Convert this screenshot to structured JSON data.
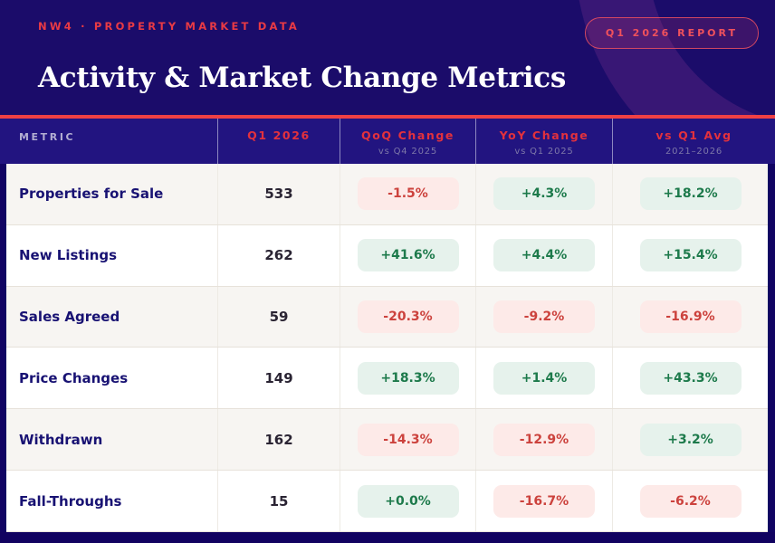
{
  "header": {
    "eyebrow": "NW4 · PROPERTY MARKET DATA",
    "badge": "Q1 2026 REPORT",
    "title": "Activity & Market Change Metrics"
  },
  "colors": {
    "accent_red": "#ef4044",
    "header_band": "#221480",
    "hero_navy": "#1b0c6a",
    "positive_text": "#1d7a4b",
    "positive_bg": "#e6f2ec",
    "negative_text": "#cc423d",
    "negative_bg": "#fdeae8",
    "metric_navy": "#181273"
  },
  "table": {
    "columns": [
      {
        "label": "METRIC",
        "sub": ""
      },
      {
        "label": "Q1 2026",
        "sub": ""
      },
      {
        "label": "QoQ Change",
        "sub": "vs Q4 2025"
      },
      {
        "label": "YoY Change",
        "sub": "vs Q1 2025"
      },
      {
        "label": "vs Q1 Avg",
        "sub": "2021–2026"
      }
    ],
    "rows": [
      {
        "metric": "Properties for Sale",
        "value": "533",
        "qoq": {
          "text": "-1.5%",
          "dir": "neg"
        },
        "yoy": {
          "text": "+4.3%",
          "dir": "pos"
        },
        "avg": {
          "text": "+18.2%",
          "dir": "pos"
        }
      },
      {
        "metric": "New Listings",
        "value": "262",
        "qoq": {
          "text": "+41.6%",
          "dir": "pos"
        },
        "yoy": {
          "text": "+4.4%",
          "dir": "pos"
        },
        "avg": {
          "text": "+15.4%",
          "dir": "pos"
        }
      },
      {
        "metric": "Sales Agreed",
        "value": "59",
        "qoq": {
          "text": "-20.3%",
          "dir": "neg"
        },
        "yoy": {
          "text": "-9.2%",
          "dir": "neg"
        },
        "avg": {
          "text": "-16.9%",
          "dir": "neg"
        }
      },
      {
        "metric": "Price Changes",
        "value": "149",
        "qoq": {
          "text": "+18.3%",
          "dir": "pos"
        },
        "yoy": {
          "text": "+1.4%",
          "dir": "pos"
        },
        "avg": {
          "text": "+43.3%",
          "dir": "pos"
        }
      },
      {
        "metric": "Withdrawn",
        "value": "162",
        "qoq": {
          "text": "-14.3%",
          "dir": "neg"
        },
        "yoy": {
          "text": "-12.9%",
          "dir": "neg"
        },
        "avg": {
          "text": "+3.2%",
          "dir": "pos"
        }
      },
      {
        "metric": "Fall-Throughs",
        "value": "15",
        "qoq": {
          "text": "+0.0%",
          "dir": "pos"
        },
        "yoy": {
          "text": "-16.7%",
          "dir": "neg"
        },
        "avg": {
          "text": "-6.2%",
          "dir": "neg"
        }
      }
    ]
  },
  "chart_data": {
    "type": "table",
    "title": "Activity & Market Change Metrics",
    "subtitle": "NW4 · Property Market Data — Q1 2026 Report",
    "columns": [
      "Metric",
      "Q1 2026",
      "QoQ Change vs Q4 2025 (%)",
      "YoY Change vs Q1 2025 (%)",
      "vs Q1 Avg 2021–2026 (%)"
    ],
    "rows": [
      [
        "Properties for Sale",
        533,
        -1.5,
        4.3,
        18.2
      ],
      [
        "New Listings",
        262,
        41.6,
        4.4,
        15.4
      ],
      [
        "Sales Agreed",
        59,
        -20.3,
        -9.2,
        -16.9
      ],
      [
        "Price Changes",
        149,
        18.3,
        1.4,
        43.3
      ],
      [
        "Withdrawn",
        162,
        -14.3,
        -12.9,
        3.2
      ],
      [
        "Fall-Throughs",
        15,
        0.0,
        -16.7,
        -6.2
      ]
    ],
    "legend_position": "none",
    "notes": "Green pill = positive change, red pill = negative change"
  }
}
